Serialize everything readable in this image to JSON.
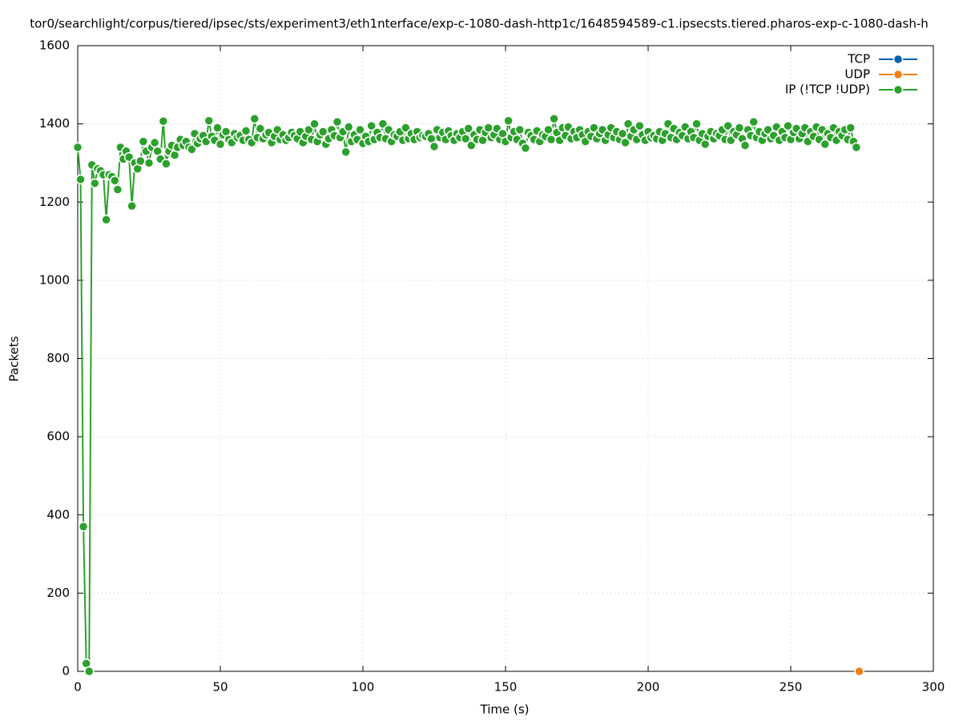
{
  "chart_data": {
    "type": "line",
    "title": "tor0/searchlight/corpus/tiered/ipsec/sts/experiment3/eth1nterface/exp-c-1080-dash-http1c/1648594589-c1.ipsecsts.tiered.pharos-exp-c-1080-dash-h",
    "x_label": "Time (s)",
    "y_label": "Packets",
    "xlim": [
      0,
      300
    ],
    "xticks": [
      0,
      50,
      100,
      150,
      200,
      250,
      300
    ],
    "ylim": [
      0,
      1600
    ],
    "yticks": [
      0,
      200,
      400,
      600,
      800,
      1000,
      1200,
      1400,
      1600
    ],
    "grid": true,
    "legend": "top-right",
    "series": [
      {
        "name": "TCP",
        "color": "#0062b0",
        "x": [],
        "values": []
      },
      {
        "name": "UDP",
        "color": "#f07f12",
        "x": [
          274
        ],
        "values": [
          0
        ]
      },
      {
        "name": "IP (!TCP  !UDP)",
        "color": "#2ca02c",
        "x": [
          0,
          1,
          2,
          3,
          4,
          5,
          6,
          7,
          8,
          9,
          10,
          11,
          12,
          13,
          14,
          15,
          16,
          17,
          18,
          19,
          20,
          21,
          22,
          23,
          24,
          25,
          26,
          27,
          28,
          29,
          30,
          31,
          32,
          33,
          34,
          35,
          36,
          37,
          38,
          39,
          40,
          41,
          42,
          43,
          44,
          45,
          46,
          47,
          48,
          49,
          50,
          51,
          52,
          53,
          54,
          55,
          56,
          57,
          58,
          59,
          60,
          61,
          62,
          63,
          64,
          65,
          66,
          67,
          68,
          69,
          70,
          71,
          72,
          73,
          74,
          75,
          76,
          77,
          78,
          79,
          80,
          81,
          82,
          83,
          84,
          85,
          86,
          87,
          88,
          89,
          90,
          91,
          92,
          93,
          94,
          95,
          96,
          97,
          98,
          99,
          100,
          101,
          102,
          103,
          104,
          105,
          106,
          107,
          108,
          109,
          110,
          111,
          112,
          113,
          114,
          115,
          116,
          117,
          118,
          119,
          120,
          121,
          122,
          123,
          124,
          125,
          126,
          127,
          128,
          129,
          130,
          131,
          132,
          133,
          134,
          135,
          136,
          137,
          138,
          139,
          140,
          141,
          142,
          143,
          144,
          145,
          146,
          147,
          148,
          149,
          150,
          151,
          152,
          153,
          154,
          155,
          156,
          157,
          158,
          159,
          160,
          161,
          162,
          163,
          164,
          165,
          166,
          167,
          168,
          169,
          170,
          171,
          172,
          173,
          174,
          175,
          176,
          177,
          178,
          179,
          180,
          181,
          182,
          183,
          184,
          185,
          186,
          187,
          188,
          189,
          190,
          191,
          192,
          193,
          194,
          195,
          196,
          197,
          198,
          199,
          200,
          201,
          202,
          203,
          204,
          205,
          206,
          207,
          208,
          209,
          210,
          211,
          212,
          213,
          214,
          215,
          216,
          217,
          218,
          219,
          220,
          221,
          222,
          223,
          224,
          225,
          226,
          227,
          228,
          229,
          230,
          231,
          232,
          233,
          234,
          235,
          236,
          237,
          238,
          239,
          240,
          241,
          242,
          243,
          244,
          245,
          246,
          247,
          248,
          249,
          250,
          251,
          252,
          253,
          254,
          255,
          256,
          257,
          258,
          259,
          260,
          261,
          262,
          263,
          264,
          265,
          266,
          267,
          268,
          269,
          270,
          271,
          272,
          273
        ],
        "values": [
          1340,
          1258,
          370,
          20,
          0,
          1295,
          1248,
          1285,
          1280,
          1270,
          1155,
          1270,
          1265,
          1255,
          1232,
          1340,
          1310,
          1330,
          1315,
          1190,
          1300,
          1285,
          1305,
          1355,
          1330,
          1300,
          1340,
          1352,
          1330,
          1310,
          1407,
          1298,
          1330,
          1345,
          1320,
          1340,
          1360,
          1345,
          1355,
          1340,
          1335,
          1375,
          1350,
          1362,
          1370,
          1355,
          1408,
          1368,
          1358,
          1390,
          1348,
          1372,
          1380,
          1360,
          1352,
          1375,
          1365,
          1370,
          1358,
          1382,
          1360,
          1352,
          1413,
          1365,
          1388,
          1362,
          1372,
          1378,
          1352,
          1368,
          1385,
          1360,
          1372,
          1358,
          1365,
          1378,
          1370,
          1362,
          1380,
          1352,
          1368,
          1385,
          1360,
          1400,
          1355,
          1372,
          1380,
          1348,
          1362,
          1385,
          1370,
          1405,
          1365,
          1380,
          1328,
          1392,
          1355,
          1372,
          1360,
          1385,
          1350,
          1368,
          1355,
          1395,
          1360,
          1378,
          1365,
          1400,
          1362,
          1385,
          1355,
          1372,
          1368,
          1380,
          1358,
          1390,
          1362,
          1375,
          1360,
          1380,
          1365,
          1370,
          1368,
          1375,
          1362,
          1342,
          1385,
          1365,
          1378,
          1360,
          1382,
          1370,
          1358,
          1375,
          1365,
          1380,
          1362,
          1388,
          1345,
          1372,
          1360,
          1385,
          1358,
          1378,
          1390,
          1365,
          1372,
          1388,
          1360,
          1375,
          1355,
          1408,
          1365,
          1380,
          1360,
          1385,
          1350,
          1338,
          1378,
          1370,
          1360,
          1382,
          1355,
          1372,
          1368,
          1385,
          1360,
          1413,
          1378,
          1358,
          1390,
          1370,
          1392,
          1362,
          1380,
          1365,
          1385,
          1372,
          1355,
          1380,
          1368,
          1390,
          1362,
          1375,
          1385,
          1358,
          1372,
          1390,
          1365,
          1380,
          1360,
          1375,
          1352,
          1400,
          1368,
          1385,
          1360,
          1395,
          1372,
          1358,
          1380,
          1365,
          1370,
          1362,
          1380,
          1358,
          1375,
          1400,
          1365,
          1388,
          1360,
          1378,
          1370,
          1392,
          1362,
          1380,
          1365,
          1400,
          1358,
          1375,
          1348,
          1368,
          1380,
          1362,
          1375,
          1370,
          1385,
          1360,
          1395,
          1358,
          1380,
          1372,
          1390,
          1362,
          1345,
          1385,
          1370,
          1405,
          1365,
          1380,
          1358,
          1375,
          1385,
          1362,
          1370,
          1392,
          1358,
          1380,
          1365,
          1395,
          1360,
          1378,
          1388,
          1362,
          1375,
          1390,
          1355,
          1380,
          1368,
          1392,
          1360,
          1385,
          1348,
          1375,
          1365,
          1390,
          1358,
          1380,
          1370,
          1385,
          1360,
          1390,
          1355,
          1340
        ]
      }
    ]
  }
}
